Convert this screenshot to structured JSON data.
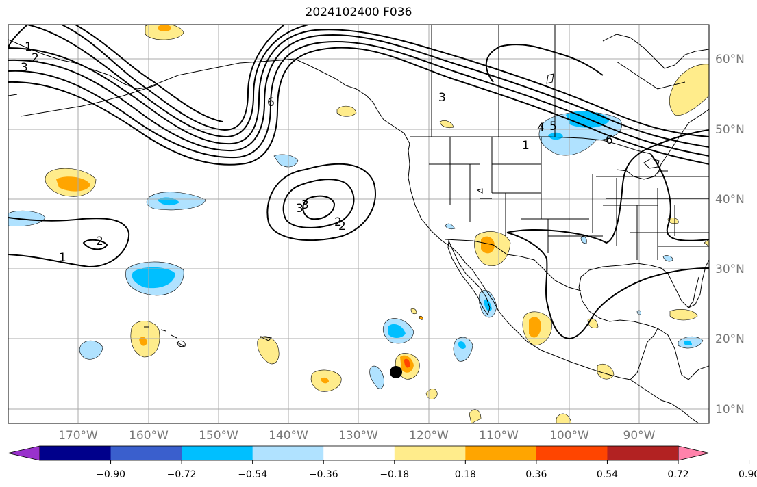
{
  "title": "2024102400 F036",
  "longitude_labels": [
    "170°W",
    "160°W",
    "150°W",
    "140°W",
    "130°W",
    "120°W",
    "110°W",
    "100°W",
    "90°W"
  ],
  "latitude_labels": [
    "60°N",
    "50°N",
    "40°N",
    "30°N",
    "20°N",
    "10°N"
  ],
  "contour_labels": [
    "1",
    "2",
    "3",
    "6",
    "3",
    "2",
    "3",
    "1",
    "4",
    "5",
    "6",
    "2",
    "1",
    "3",
    "2"
  ],
  "colorbar": {
    "ticks": [
      "−0.90",
      "−0.72",
      "−0.54",
      "−0.36",
      "−0.18",
      "0.18",
      "0.36",
      "0.54",
      "0.72",
      "0.90"
    ],
    "colors": [
      "#9932CC",
      "#00008B",
      "#3A5FCD",
      "#00BFFF",
      "#B0E2FF",
      "#FFFFFF",
      "#FFEC8B",
      "#FFA500",
      "#FF4500",
      "#B22222",
      "#FF82AB"
    ]
  },
  "marker": "storm-center-dot"
}
